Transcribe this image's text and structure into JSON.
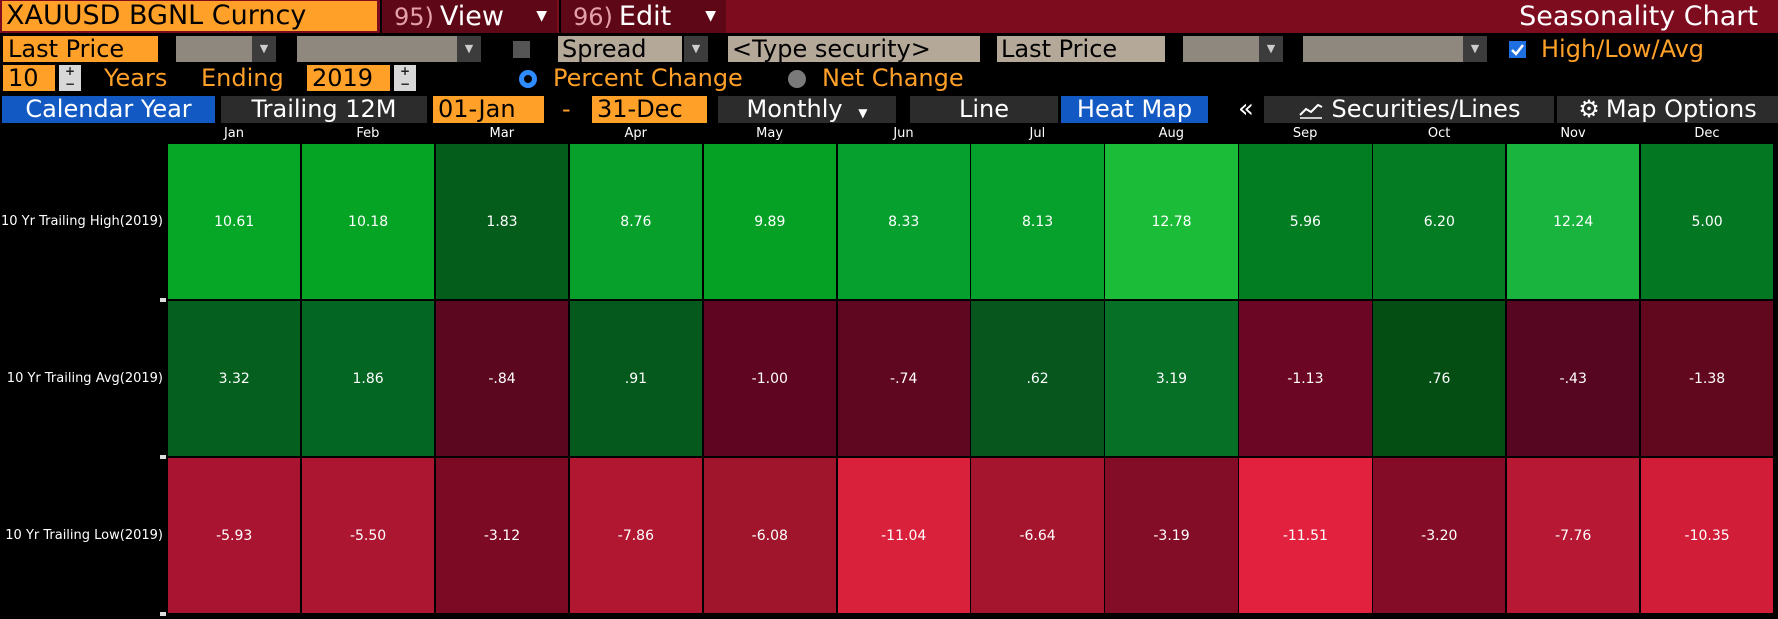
{
  "title_bar": {
    "security": "XAUUSD BGNL Curncy",
    "view_num": "95)",
    "view_label": "View",
    "edit_num": "96)",
    "edit_label": "Edit",
    "app_title": "Seasonality Chart"
  },
  "controls": {
    "field1": "Last Price",
    "spread_label": "Spread",
    "security2_placeholder": "<Type security>",
    "field2": "Last Price",
    "high_low_avg_label": "High/Low/Avg",
    "high_low_avg_checked": true,
    "years": "10",
    "years_label": "Years",
    "ending_label": "Ending",
    "ending_year": "2019",
    "percent_change_label": "Percent Change",
    "net_change_label": "Net Change",
    "selected_mode": "Percent Change"
  },
  "tabs": {
    "calendar_year": "Calendar Year",
    "trailing_12m": "Trailing 12M",
    "start_date": "01-Jan",
    "date_sep": "-",
    "end_date": "31-Dec",
    "periodicity": "Monthly",
    "line": "Line",
    "heat_map": "Heat Map",
    "collapse": "«",
    "securities_lines": "Securities/Lines",
    "map_options": "Map Options",
    "active_tab": "Heat Map"
  },
  "colors": {
    "accent_orange": "#ffa028",
    "title_bar": "#7d0c1f",
    "active_tab": "#1259c3"
  },
  "heatmap": {
    "months": [
      "Jan",
      "Feb",
      "Mar",
      "Apr",
      "May",
      "Jun",
      "Jul",
      "Aug",
      "Sep",
      "Oct",
      "Nov",
      "Dec"
    ],
    "rows": [
      {
        "label": "10 Yr Trailing High(2019)",
        "values": [
          "10.61",
          "10.18",
          "1.83",
          "8.76",
          "9.89",
          "8.33",
          "8.13",
          "12.78",
          "5.96",
          "6.20",
          "12.24",
          "5.00"
        ]
      },
      {
        "label": "10 Yr Trailing Avg(2019)",
        "values": [
          "3.32",
          "1.86",
          "-.84",
          ".91",
          "-1.00",
          "-.74",
          ".62",
          "3.19",
          "-1.13",
          ".76",
          "-.43",
          "-1.38"
        ]
      },
      {
        "label": "10 Yr Trailing Low(2019)",
        "values": [
          "-5.93",
          "-5.50",
          "-3.12",
          "-7.86",
          "-6.08",
          "-11.04",
          "-6.64",
          "-3.19",
          "-11.51",
          "-3.20",
          "-7.76",
          "-10.35"
        ]
      }
    ],
    "cell_colors": [
      [
        "#06a626",
        "#05a424",
        "#055d1b",
        "#06a02a",
        "#04a125",
        "#05a02e",
        "#06a02c",
        "#1bbd38",
        "#037d22",
        "#037c23",
        "#18b43e",
        "#047723"
      ],
      [
        "#05601f",
        "#036623",
        "#5c0720",
        "#05591c",
        "#600521",
        "#5f0620",
        "#06561d",
        "#057026",
        "#6c0625",
        "#044d13",
        "#560620",
        "#61081f"
      ],
      [
        "#a91530",
        "#ad1631",
        "#7d0a24",
        "#b21731",
        "#a0152c",
        "#d9213c",
        "#a5152d",
        "#830c27",
        "#e1213e",
        "#840c26",
        "#b71834",
        "#d21d38"
      ]
    ]
  }
}
